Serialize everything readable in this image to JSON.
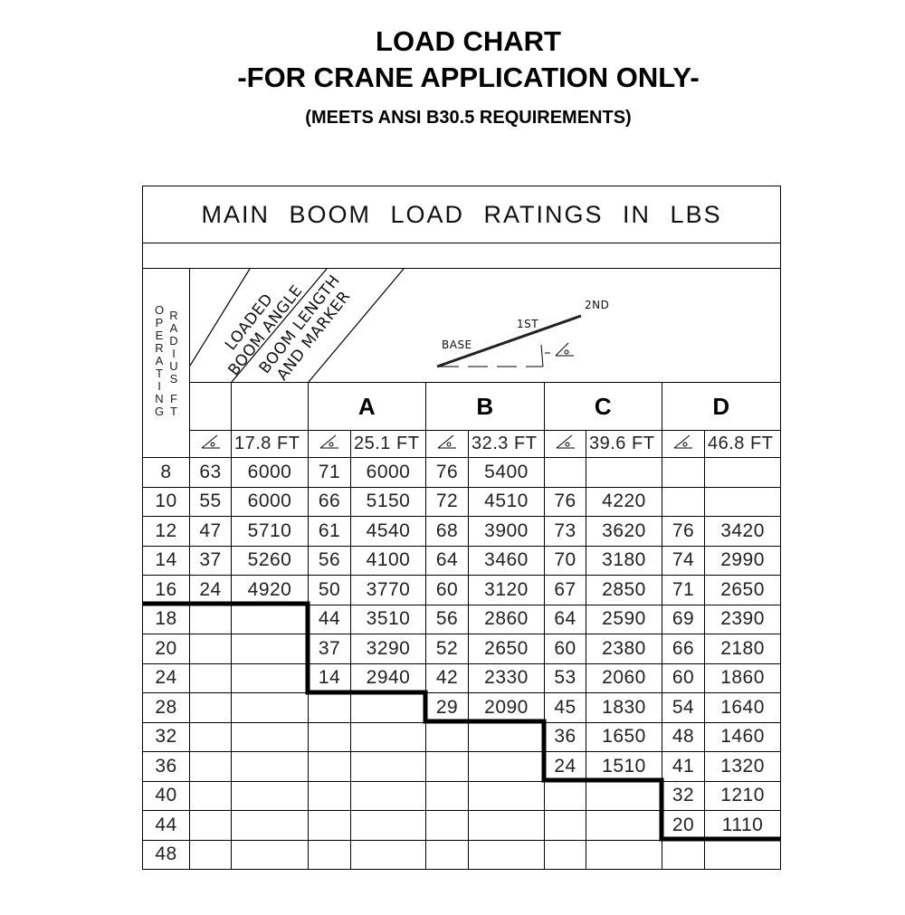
{
  "header": {
    "title": "LOAD CHART",
    "subtitle": "-FOR CRANE APPLICATION ONLY-",
    "note": "(MEETS ANSI B30.5 REQUIREMENTS)"
  },
  "table": {
    "title": "MAIN BOOM LOAD RATINGS IN LBS",
    "radius_label_1": "OPERATING",
    "radius_label_2": "RADIUS",
    "radius_label_3": "FT",
    "angle_header_1": "LOADED",
    "angle_header_2": "BOOM ANGLE",
    "length_header_1": "BOOM LENGTH",
    "length_header_2": "AND MARKER",
    "diagram": {
      "base": "BASE",
      "first": "1ST",
      "second": "2ND"
    },
    "angle_icon": "boom-angle-icon",
    "sections": [
      {
        "marker": "",
        "length": "17.8 FT"
      },
      {
        "marker": "A",
        "length": "25.1 FT"
      },
      {
        "marker": "B",
        "length": "32.3 FT"
      },
      {
        "marker": "C",
        "length": "39.6 FT"
      },
      {
        "marker": "D",
        "length": "46.8 FT"
      }
    ],
    "rows": [
      [
        "8",
        "63",
        "6000",
        "71",
        "6000",
        "76",
        "5400",
        "",
        "",
        "",
        ""
      ],
      [
        "10",
        "55",
        "6000",
        "66",
        "5150",
        "72",
        "4510",
        "76",
        "4220",
        "",
        ""
      ],
      [
        "12",
        "47",
        "5710",
        "61",
        "4540",
        "68",
        "3900",
        "73",
        "3620",
        "76",
        "3420"
      ],
      [
        "14",
        "37",
        "5260",
        "56",
        "4100",
        "64",
        "3460",
        "70",
        "3180",
        "74",
        "2990"
      ],
      [
        "16",
        "24",
        "4920",
        "50",
        "3770",
        "60",
        "3120",
        "67",
        "2850",
        "71",
        "2650"
      ],
      [
        "18",
        "",
        "",
        "44",
        "3510",
        "56",
        "2860",
        "64",
        "2590",
        "69",
        "2390"
      ],
      [
        "20",
        "",
        "",
        "37",
        "3290",
        "52",
        "2650",
        "60",
        "2380",
        "66",
        "2180"
      ],
      [
        "24",
        "",
        "",
        "14",
        "2940",
        "42",
        "2330",
        "53",
        "2060",
        "60",
        "1860"
      ],
      [
        "28",
        "",
        "",
        "",
        "",
        "29",
        "2090",
        "45",
        "1830",
        "54",
        "1640"
      ],
      [
        "32",
        "",
        "",
        "",
        "",
        "",
        "",
        "36",
        "1650",
        "48",
        "1460"
      ],
      [
        "36",
        "",
        "",
        "",
        "",
        "",
        "",
        "24",
        "1510",
        "41",
        "1320"
      ],
      [
        "40",
        "",
        "",
        "",
        "",
        "",
        "",
        "",
        "",
        "32",
        "1210"
      ],
      [
        "44",
        "",
        "",
        "",
        "",
        "",
        "",
        "",
        "",
        "20",
        "1110"
      ],
      [
        "48",
        "",
        "",
        "",
        "",
        "",
        "",
        "",
        "",
        "",
        ""
      ]
    ]
  }
}
